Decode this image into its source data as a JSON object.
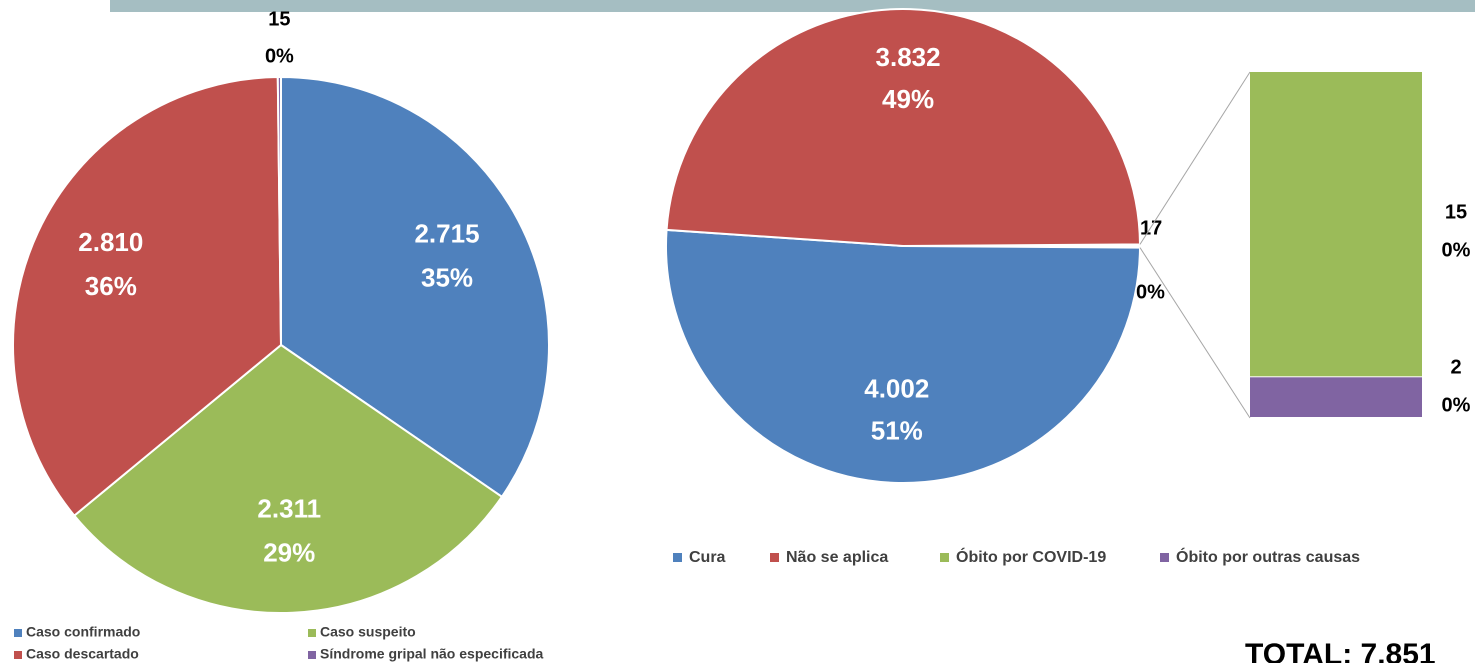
{
  "chart_data": [
    {
      "type": "pie",
      "categories": [
        "Caso confirmado",
        "Caso suspeito",
        "Caso descartado",
        "Síndrome gripal não especificada"
      ],
      "values": [
        2715,
        2311,
        2810,
        15
      ],
      "value_labels": [
        "2.715",
        "2.311",
        "2.810",
        "15"
      ],
      "percent_labels": [
        "35%",
        "29%",
        "36%",
        "0%"
      ],
      "colors": [
        "#4f81bd",
        "#9bbb59",
        "#c0504d",
        "#8064a2"
      ],
      "total_label": "TOTAL: 7.851"
    },
    {
      "type": "pie",
      "categories": [
        "Cura",
        "Não se aplica"
      ],
      "values": [
        4002,
        3832
      ],
      "value_labels": [
        "4.002",
        "3.832"
      ],
      "percent_labels": [
        "51%",
        "49%"
      ],
      "colors": [
        "#4f81bd",
        "#c0504d"
      ],
      "other_value": 17,
      "other_percent_label": "0%",
      "bar_categories": [
        "Óbito por COVID-19",
        "Óbito por outras causas"
      ],
      "bar_values": [
        15,
        2
      ],
      "bar_percent_labels": [
        "0%",
        "0%"
      ],
      "bar_colors": [
        "#9bbb59",
        "#8064a2"
      ]
    }
  ]
}
